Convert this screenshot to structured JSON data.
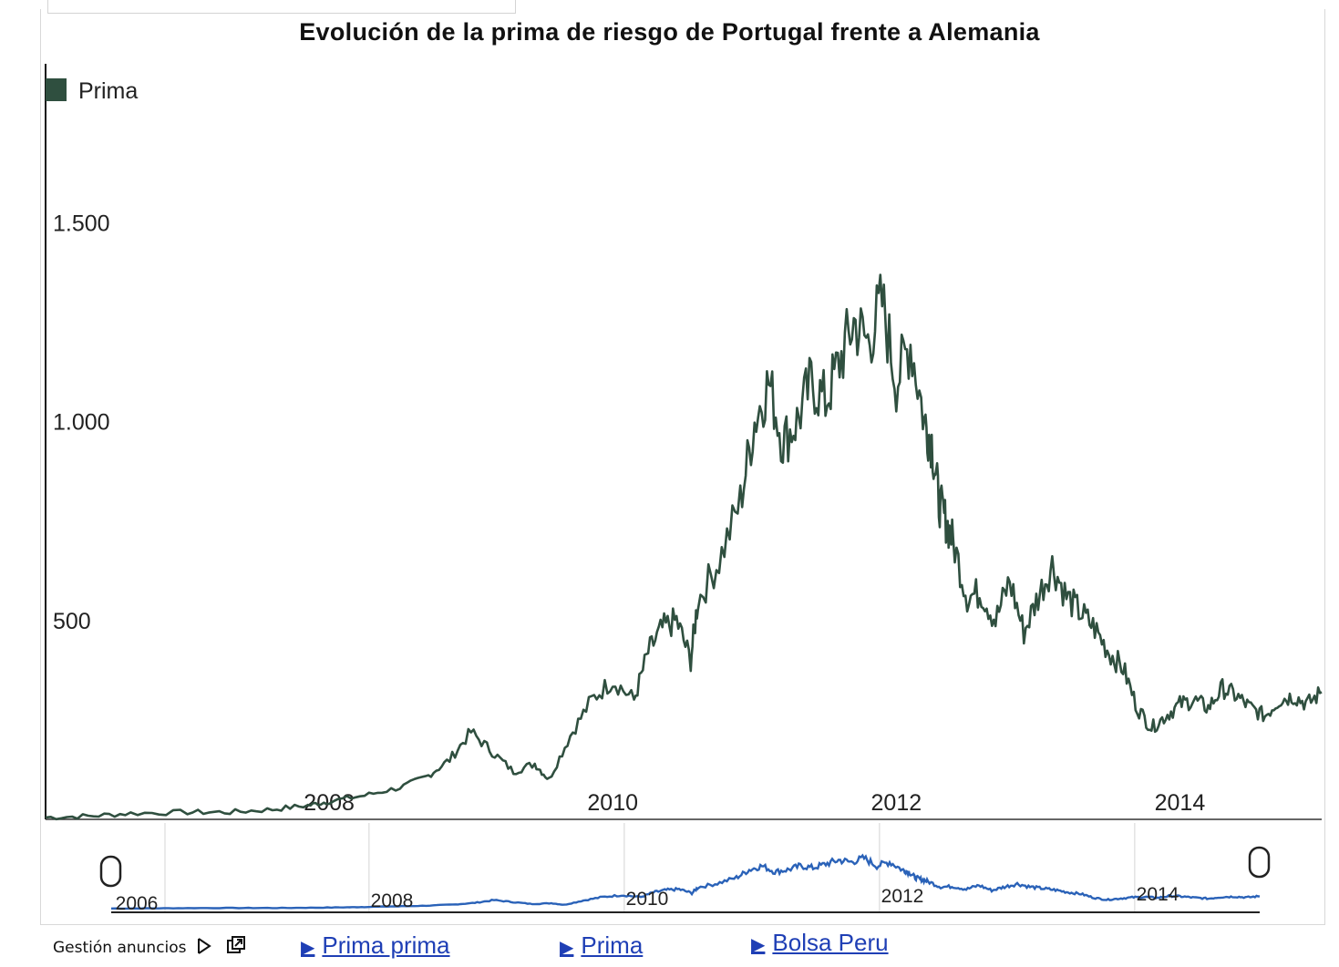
{
  "chart_data": {
    "type": "line",
    "title": "Evolución de la prima de riesgo de Portugal frente a Alemania",
    "legend": {
      "position": "top-left",
      "entries": [
        {
          "label": "Prima",
          "color": "#2f4f3f"
        }
      ]
    },
    "y_ticks": [
      {
        "value": 500,
        "label": "500"
      },
      {
        "value": 1000,
        "label": "1.000"
      },
      {
        "value": 1500,
        "label": "1.500"
      }
    ],
    "x_ticks": [
      {
        "value": 2008,
        "label": "2008"
      },
      {
        "value": 2010,
        "label": "2010"
      },
      {
        "value": 2012,
        "label": "2012"
      },
      {
        "value": 2014,
        "label": "2014"
      }
    ],
    "ylim": [
      0,
      1900
    ],
    "xlim": [
      2006.0,
      2015.0
    ],
    "series": [
      {
        "name": "Prima",
        "color": "#2f4f3f",
        "x": [
          2006.0,
          2006.3,
          2006.6,
          2007.0,
          2007.3,
          2007.6,
          2007.85,
          2008.0,
          2008.25,
          2008.5,
          2008.7,
          2008.85,
          2009.0,
          2009.15,
          2009.3,
          2009.45,
          2009.55,
          2009.7,
          2009.85,
          2010.0,
          2010.15,
          2010.25,
          2010.35,
          2010.45,
          2010.55,
          2010.6,
          2010.75,
          2010.9,
          2011.0,
          2011.1,
          2011.2,
          2011.3,
          2011.4,
          2011.5,
          2011.6,
          2011.7,
          2011.8,
          2011.9,
          2012.0,
          2012.1,
          2012.2,
          2012.25,
          2012.3,
          2012.35,
          2012.4,
          2012.5,
          2012.6,
          2012.7,
          2012.8,
          2012.9,
          2013.0,
          2013.1,
          2013.2,
          2013.3,
          2013.4,
          2013.5,
          2013.6,
          2013.7,
          2013.8,
          2013.9,
          2014.0,
          2014.1,
          2014.2,
          2014.3,
          2014.4,
          2014.5,
          2014.6,
          2014.7,
          2014.8,
          2014.9,
          2015.0
        ],
        "values": [
          5,
          8,
          15,
          18,
          18,
          25,
          35,
          45,
          60,
          80,
          110,
          150,
          220,
          170,
          120,
          140,
          100,
          210,
          300,
          350,
          300,
          420,
          480,
          500,
          400,
          550,
          650,
          800,
          1000,
          1100,
          950,
          1000,
          1100,
          1050,
          1150,
          1250,
          1200,
          1300,
          1100,
          1200,
          1000,
          950,
          800,
          750,
          700,
          560,
          570,
          500,
          600,
          470,
          560,
          640,
          560,
          520,
          480,
          420,
          380,
          280,
          230,
          260,
          290,
          300,
          280,
          330,
          310,
          280,
          260,
          300,
          310,
          290,
          320
        ]
      }
    ],
    "navigator": {
      "x_ticks": [
        {
          "value": 2006,
          "label": "2006"
        },
        {
          "value": 2008,
          "label": "2008"
        },
        {
          "value": 2010,
          "label": "2010"
        },
        {
          "value": 2012,
          "label": "2012"
        },
        {
          "value": 2014,
          "label": "2014"
        }
      ],
      "line_color": "#2a62b8"
    }
  },
  "footer": {
    "ads_label": "Gestión anuncios",
    "links": [
      {
        "label": "Prima prima"
      },
      {
        "label": "Prima"
      },
      {
        "label": "Bolsa Peru"
      }
    ],
    "link_color": "#1f3fb5"
  }
}
